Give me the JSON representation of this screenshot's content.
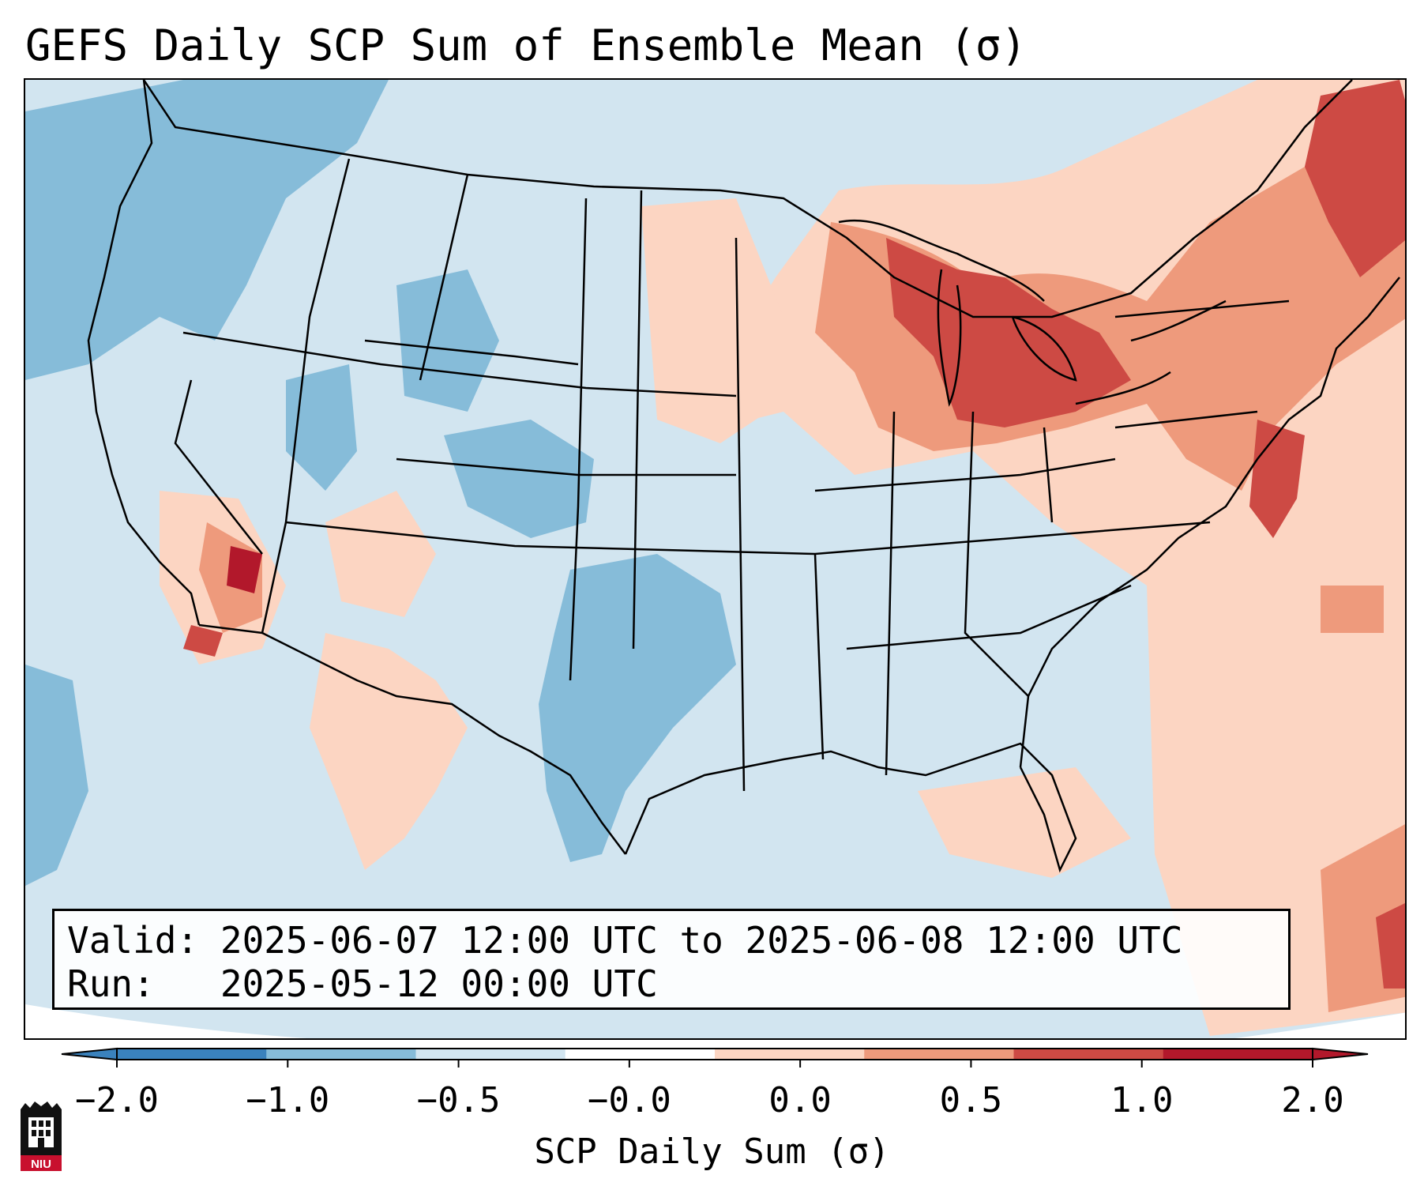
{
  "figure": {
    "title": "GEFS Daily SCP Sum of Ensemble Mean (σ)"
  },
  "info": {
    "valid_label": "Valid:",
    "valid_value": "2025-06-07 12:00 UTC to 2025-06-08 12:00 UTC",
    "run_label": "Run:",
    "run_value": "2025-05-12 00:00 UTC"
  },
  "colorbar": {
    "label": "SCP Daily Sum (σ)",
    "ticks": [
      "−2.0",
      "−1.0",
      "−0.5",
      "−0.0",
      "0.0",
      "0.5",
      "1.0",
      "2.0"
    ],
    "colors": [
      "#3a82bd",
      "#86bcd9",
      "#d2e5f0",
      "#ffffff",
      "#fcd5c2",
      "#ee9a7c",
      "#cd4a44",
      "#b2182b"
    ],
    "extend": "both"
  },
  "map": {
    "region": "Contiguous United States",
    "background_color": "#d2e5f0",
    "border_color": "#000000"
  },
  "logo": {
    "text": "NIU",
    "color": "#c8102e"
  }
}
